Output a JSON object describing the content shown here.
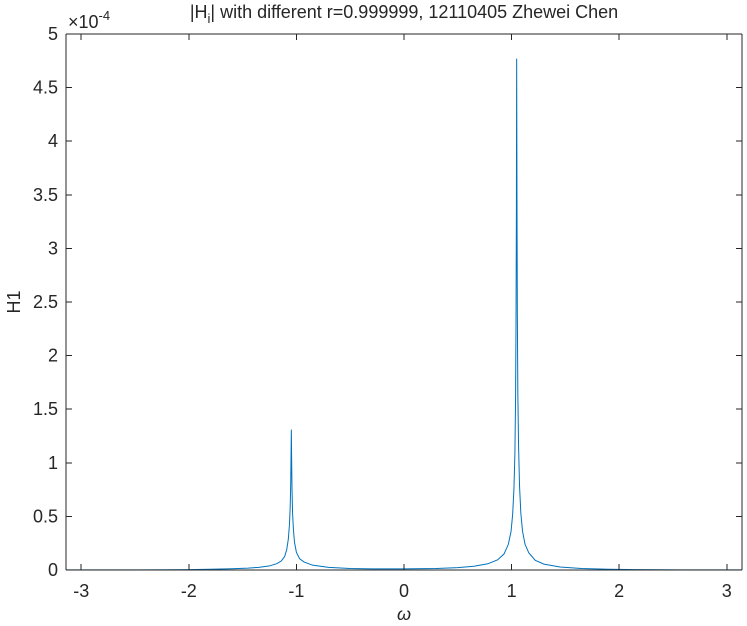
{
  "chart_data": {
    "type": "line",
    "title_parts": {
      "prefix": "|H",
      "subscript": "i",
      "suffix": "| with different r=0.999999, 12110405 Zhewei Chen"
    },
    "xlabel": "ω",
    "ylabel": "H1",
    "xlim": [
      -3.1416,
      3.1416
    ],
    "ylim": [
      0,
      0.0005
    ],
    "y_exponent_label": {
      "base": "×10",
      "exponent": "-4"
    },
    "x_ticks": [
      -3,
      -2,
      -1,
      0,
      1,
      2,
      3
    ],
    "x_tick_labels": [
      "-3",
      "-2",
      "-1",
      "0",
      "1",
      "2",
      "3"
    ],
    "y_ticks": [
      0,
      5e-05,
      0.0001,
      0.00015,
      0.0002,
      0.00025,
      0.0003,
      0.00035,
      0.0004,
      0.00045,
      0.0005
    ],
    "y_tick_labels": [
      "0",
      "0.5",
      "1",
      "1.5",
      "2",
      "2.5",
      "3",
      "3.5",
      "4",
      "4.5",
      "5"
    ],
    "box": true,
    "grid": false,
    "series": [
      {
        "color": "#0072BD",
        "peaks": [
          {
            "x": -1.0472,
            "y": 0.000131
          },
          {
            "x": 1.0472,
            "y": 0.000477
          }
        ],
        "points": [
          [
            -3.1416,
            1e-07
          ],
          [
            -2.8,
            1e-07
          ],
          [
            -2.5,
            1.5e-07
          ],
          [
            -2.2,
            2e-07
          ],
          [
            -2.0,
            4e-07
          ],
          [
            -1.8,
            7e-07
          ],
          [
            -1.6,
            1.2e-06
          ],
          [
            -1.45,
            1.8e-06
          ],
          [
            -1.35,
            2.5e-06
          ],
          [
            -1.25,
            3.8e-06
          ],
          [
            -1.18,
            6e-06
          ],
          [
            -1.14,
            8.5e-06
          ],
          [
            -1.11,
            1.25e-05
          ],
          [
            -1.09,
            1.9e-05
          ],
          [
            -1.075,
            2.9e-05
          ],
          [
            -1.065,
            4.2e-05
          ],
          [
            -1.058,
            5.8e-05
          ],
          [
            -1.053,
            8e-05
          ],
          [
            -1.05,
            0.000105
          ],
          [
            -1.0472,
            0.000131
          ],
          [
            -1.044,
            0.0001
          ],
          [
            -1.041,
            7.6e-05
          ],
          [
            -1.036,
            5.4e-05
          ],
          [
            -1.028,
            3.8e-05
          ],
          [
            -1.018,
            2.6e-05
          ],
          [
            -1.0,
            1.65e-05
          ],
          [
            -0.97,
            1.05e-05
          ],
          [
            -0.93,
            7.5e-06
          ],
          [
            -0.85,
            4.5e-06
          ],
          [
            -0.7,
            2.5e-06
          ],
          [
            -0.5,
            1.4e-06
          ],
          [
            -0.3,
            1.1e-06
          ],
          [
            0.0,
            1e-06
          ],
          [
            0.3,
            1.4e-06
          ],
          [
            0.5,
            2.2e-06
          ],
          [
            0.65,
            3.5e-06
          ],
          [
            0.78,
            5.8e-06
          ],
          [
            0.87,
            9.5e-06
          ],
          [
            0.93,
            1.5e-05
          ],
          [
            0.97,
            2.4e-05
          ],
          [
            0.995,
            3.6e-05
          ],
          [
            1.01,
            5.2e-05
          ],
          [
            1.022,
            7.6e-05
          ],
          [
            1.031,
            0.00011
          ],
          [
            1.037,
            0.00016
          ],
          [
            1.041,
            0.00023
          ],
          [
            1.0445,
            0.00033
          ],
          [
            1.0472,
            0.000477
          ],
          [
            1.05,
            0.00035
          ],
          [
            1.0535,
            0.00024
          ],
          [
            1.058,
            0.000165
          ],
          [
            1.065,
            0.000115
          ],
          [
            1.074,
            7.8e-05
          ],
          [
            1.086,
            5.3e-05
          ],
          [
            1.102,
            3.6e-05
          ],
          [
            1.125,
            2.4e-05
          ],
          [
            1.16,
            1.6e-05
          ],
          [
            1.22,
            9e-06
          ],
          [
            1.3,
            5.5e-06
          ],
          [
            1.45,
            2.8e-06
          ],
          [
            1.65,
            1.4e-06
          ],
          [
            1.9,
            7e-07
          ],
          [
            2.2,
            3e-07
          ],
          [
            2.6,
            1.5e-07
          ],
          [
            3.1416,
            1e-07
          ]
        ]
      }
    ]
  }
}
